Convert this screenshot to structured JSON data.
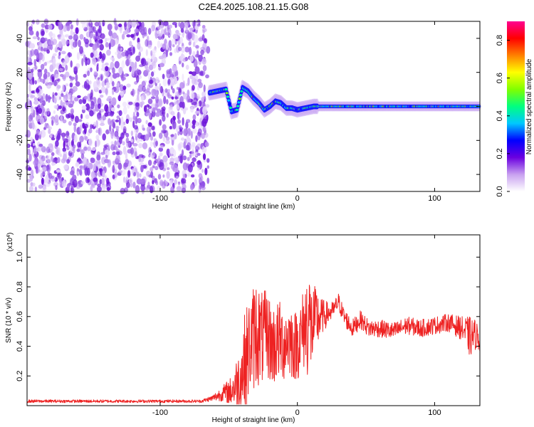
{
  "title": "C2E4.2025.108.21.15.G08",
  "chart_data": [
    {
      "type": "heatmap",
      "xlabel": "Height of straight line (km)",
      "ylabel": "Frequency (Hz)",
      "xlim": [
        -197,
        133
      ],
      "ylim": [
        -50,
        50
      ],
      "x_ticks": [
        -100,
        0,
        100
      ],
      "y_ticks": [
        -40,
        -20,
        0,
        20,
        40
      ],
      "colorbar": {
        "label": "Normalized spectral amplitude",
        "range": [
          0.0,
          0.9
        ],
        "ticks": [
          0.0,
          0.2,
          0.4,
          0.6,
          0.8
        ],
        "colors": [
          "#ffffff",
          "#c8a0f0",
          "#6a00e0",
          "#0000ff",
          "#00c8ff",
          "#00ff80",
          "#80ff00",
          "#ffff00",
          "#ff8000",
          "#ff0000",
          "#ff0090"
        ]
      },
      "noise_region_x": [
        -197,
        -65
      ],
      "signal_track": [
        {
          "x": -64,
          "y": 8
        },
        {
          "x": -58,
          "y": 9
        },
        {
          "x": -52,
          "y": 10
        },
        {
          "x": -48,
          "y": -3
        },
        {
          "x": -44,
          "y": -2
        },
        {
          "x": -40,
          "y": 11
        },
        {
          "x": -36,
          "y": 9
        },
        {
          "x": -32,
          "y": 5
        },
        {
          "x": -28,
          "y": 2
        },
        {
          "x": -24,
          "y": -2
        },
        {
          "x": -20,
          "y": 0
        },
        {
          "x": -16,
          "y": 3
        },
        {
          "x": -12,
          "y": 2
        },
        {
          "x": -8,
          "y": -1
        },
        {
          "x": -4,
          "y": -1
        },
        {
          "x": 0,
          "y": -2
        },
        {
          "x": 6,
          "y": -1
        },
        {
          "x": 12,
          "y": 0
        },
        {
          "x": 20,
          "y": 0
        },
        {
          "x": 40,
          "y": 0
        },
        {
          "x": 60,
          "y": 0
        },
        {
          "x": 80,
          "y": 0
        },
        {
          "x": 100,
          "y": 0
        },
        {
          "x": 120,
          "y": 0
        },
        {
          "x": 133,
          "y": 0
        }
      ]
    },
    {
      "type": "line",
      "xlabel": "Height of straight line (km)",
      "ylabel": "SNR (10 * v/v)",
      "y_multiplier": "(x10",
      "y_multiplier_exp": "4",
      "y_multiplier_close": ")",
      "xlim": [
        -197,
        133
      ],
      "ylim": [
        0,
        1.15
      ],
      "x_ticks": [
        -100,
        0,
        100
      ],
      "y_ticks": [
        0.2,
        0.4,
        0.6,
        0.8,
        1.0
      ],
      "line_color": "#ee2222",
      "series": [
        {
          "x": [
            -197,
            -150,
            -100,
            -70,
            -62,
            -55,
            -48,
            -42,
            -38,
            -34,
            -30,
            -26,
            -22,
            -18,
            -14,
            -10,
            -6,
            -2,
            2,
            6,
            8,
            10,
            14,
            18,
            22,
            26,
            30,
            34,
            40,
            46,
            52,
            60,
            70,
            80,
            90,
            100,
            110,
            120,
            126,
            130,
            133
          ],
          "y": [
            0.03,
            0.03,
            0.03,
            0.03,
            0.05,
            0.08,
            0.1,
            0.18,
            0.3,
            0.42,
            0.5,
            0.45,
            0.48,
            0.4,
            0.44,
            0.42,
            0.46,
            0.4,
            0.45,
            0.55,
            0.6,
            0.52,
            0.58,
            0.6,
            0.62,
            0.64,
            0.7,
            0.6,
            0.52,
            0.58,
            0.52,
            0.52,
            0.5,
            0.54,
            0.52,
            0.54,
            0.56,
            0.52,
            0.46,
            0.48,
            0.44
          ],
          "noise": [
            0.01,
            0.01,
            0.01,
            0.01,
            0.02,
            0.05,
            0.1,
            0.22,
            0.35,
            0.34,
            0.38,
            0.32,
            0.3,
            0.28,
            0.28,
            0.26,
            0.26,
            0.24,
            0.26,
            0.3,
            0.45,
            0.3,
            0.22,
            0.12,
            0.08,
            0.06,
            0.06,
            0.06,
            0.06,
            0.06,
            0.06,
            0.06,
            0.06,
            0.06,
            0.06,
            0.06,
            0.06,
            0.08,
            0.14,
            0.1,
            0.08
          ]
        }
      ]
    }
  ]
}
